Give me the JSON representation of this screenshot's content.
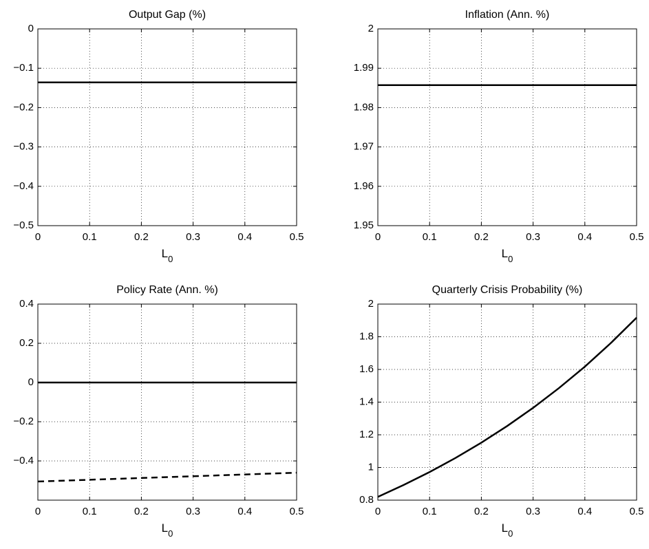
{
  "chart_data": [
    {
      "type": "line",
      "title": "Output Gap (%)",
      "xlabel": "L",
      "xlabel_subscript": "0",
      "x": [
        0,
        0.5
      ],
      "series": [
        {
          "color": "#000000",
          "style": "solid",
          "values": [
            -0.136,
            -0.136
          ]
        }
      ],
      "xlim": [
        0,
        0.5
      ],
      "xticks": [
        0,
        0.1,
        0.2,
        0.3,
        0.4,
        0.5
      ],
      "ylim": [
        -0.5,
        0
      ],
      "yticks": [
        {
          "value": -0.5,
          "label": "−0.5"
        },
        {
          "value": -0.4,
          "label": "−0.4"
        },
        {
          "value": -0.3,
          "label": "−0.3"
        },
        {
          "value": -0.2,
          "label": "−0.2"
        },
        {
          "value": -0.1,
          "label": "−0.1"
        },
        0
      ],
      "grid": true
    },
    {
      "type": "line",
      "title": "Inflation (Ann. %)",
      "xlabel": "L",
      "xlabel_subscript": "0",
      "x": [
        0,
        0.5
      ],
      "series": [
        {
          "color": "#000000",
          "style": "solid",
          "values": [
            1.9857,
            1.9857
          ]
        }
      ],
      "xlim": [
        0,
        0.5
      ],
      "xticks": [
        0,
        0.1,
        0.2,
        0.3,
        0.4,
        0.5
      ],
      "ylim": [
        1.95,
        2
      ],
      "yticks": [
        1.95,
        1.96,
        1.97,
        1.98,
        1.99,
        2
      ],
      "grid": true
    },
    {
      "type": "line",
      "title": "Policy Rate (Ann. %)",
      "xlabel": "L",
      "xlabel_subscript": "0",
      "x": [
        0,
        0.5
      ],
      "series": [
        {
          "color": "#000000",
          "style": "solid",
          "values": [
            0,
            0
          ]
        },
        {
          "color": "#000000",
          "style": "dashed",
          "values": [
            -0.505,
            -0.46
          ]
        }
      ],
      "xlim": [
        0,
        0.5
      ],
      "xticks": [
        0,
        0.1,
        0.2,
        0.3,
        0.4,
        0.5
      ],
      "ylim": [
        -0.6,
        0.4
      ],
      "yticks": [
        {
          "value": -0.4,
          "label": "−0.4"
        },
        {
          "value": -0.2,
          "label": "−0.2"
        },
        0,
        0.2,
        0.4
      ],
      "grid": true
    },
    {
      "type": "line",
      "title": "Quarterly Crisis Probability (%)",
      "xlabel": "L",
      "xlabel_subscript": "0",
      "x": [
        0,
        0.05,
        0.1,
        0.15,
        0.2,
        0.25,
        0.3,
        0.35,
        0.4,
        0.45,
        0.5
      ],
      "series": [
        {
          "color": "#000000",
          "style": "solid",
          "values": [
            0.82,
            0.893,
            0.972,
            1.058,
            1.152,
            1.254,
            1.365,
            1.486,
            1.617,
            1.761,
            1.917
          ]
        }
      ],
      "xlim": [
        0,
        0.5
      ],
      "xticks": [
        0,
        0.1,
        0.2,
        0.3,
        0.4,
        0.5
      ],
      "ylim": [
        0.8,
        2
      ],
      "yticks": [
        0.8,
        1,
        1.2,
        1.4,
        1.6,
        1.8,
        2
      ],
      "grid": true
    }
  ]
}
